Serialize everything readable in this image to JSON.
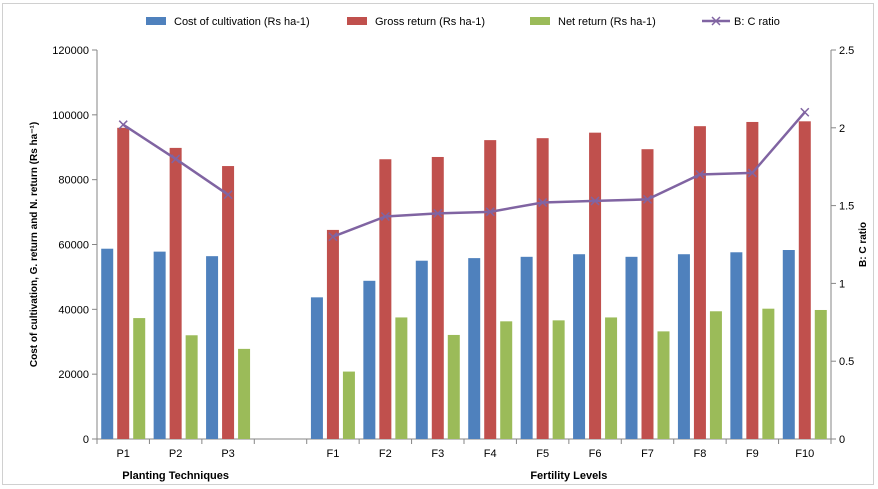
{
  "chart_data": {
    "type": "bar",
    "title": "",
    "categories": [
      "P1",
      "P2",
      "P3",
      "",
      "F1",
      "F2",
      "F3",
      "F4",
      "F5",
      "F6",
      "F7",
      "F8",
      "F9",
      "F10"
    ],
    "group_labels": [
      "Planting Techniques",
      "Fertility Levels"
    ],
    "series": [
      {
        "name": "Cost of cultivation (Rs ha-1)",
        "type": "bar",
        "axis": "left",
        "color": "#4f81bd",
        "values": [
          58700,
          57800,
          56400,
          null,
          43700,
          48800,
          55000,
          55800,
          56200,
          57000,
          56200,
          57000,
          57600,
          58300
        ]
      },
      {
        "name": "Gross return (Rs ha-1)",
        "type": "bar",
        "axis": "left",
        "color": "#c0504d",
        "values": [
          96000,
          89800,
          84200,
          null,
          64500,
          86300,
          87000,
          92200,
          92800,
          94500,
          89400,
          96500,
          97800,
          98000
        ]
      },
      {
        "name": "Net return (Rs ha-1)",
        "type": "bar",
        "axis": "left",
        "color": "#9bbb59",
        "values": [
          37300,
          32000,
          27800,
          null,
          20800,
          37500,
          32100,
          36300,
          36600,
          37500,
          33200,
          39400,
          40200,
          39800
        ]
      },
      {
        "name": "B: C ratio",
        "type": "line",
        "axis": "right",
        "color": "#8064a2",
        "values": [
          2.02,
          1.8,
          1.57,
          null,
          1.3,
          1.43,
          1.45,
          1.46,
          1.52,
          1.53,
          1.54,
          1.7,
          1.71,
          2.1
        ]
      }
    ],
    "ylabel_left": "Cost of cultivation, G. return and N. return (Rs ha⁻¹)",
    "ylabel_right": "B: C ratio",
    "y_left": {
      "min": 0,
      "max": 120000,
      "step": 20000,
      "ticks": [
        "0",
        "20000",
        "40000",
        "60000",
        "80000",
        "100000",
        "120000"
      ]
    },
    "y_right": {
      "min": 0,
      "max": 2.5,
      "step": 0.5,
      "ticks": [
        "0",
        "0.5",
        "1",
        "1.5",
        "2",
        "2.5"
      ]
    },
    "legend_position": "top",
    "grid": false
  }
}
